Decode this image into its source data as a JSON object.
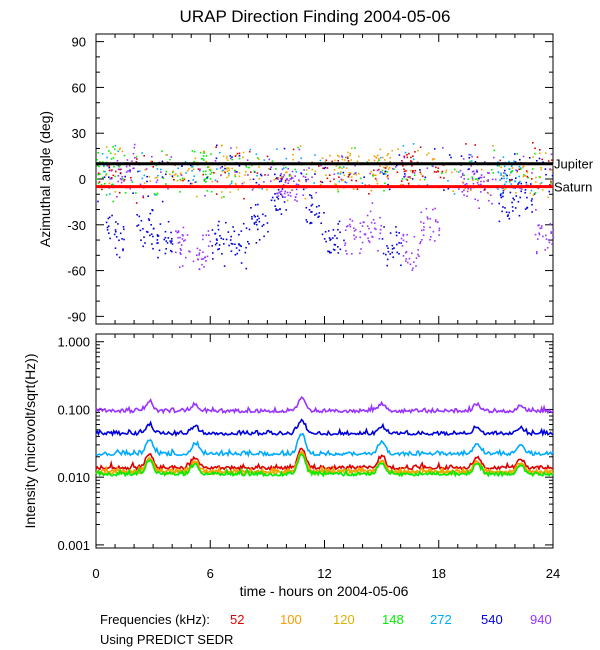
{
  "chart_data": {
    "type": "scatter",
    "title": "URAP Direction Finding  2004-05-06",
    "xlabel": "time - hours on 2004-05-06",
    "xlim": [
      0,
      24
    ],
    "xticks": [
      "0",
      "6",
      "12",
      "18",
      "24"
    ],
    "xtick_values": [
      0,
      6,
      12,
      18,
      24
    ],
    "panels": [
      {
        "id": "azimuth",
        "ylabel": "Azimuthal angle (deg)",
        "yscale": "linear",
        "ylim": [
          -95,
          95
        ],
        "yticks": [
          "90",
          "60",
          "30",
          "0",
          "-30",
          "-60",
          "-90"
        ],
        "ytick_values": [
          90,
          60,
          30,
          0,
          -30,
          -60,
          -90
        ],
        "reference_lines": [
          {
            "label": "Jupiter",
            "value": 10,
            "color": "#000000"
          },
          {
            "label": "Saturn",
            "value": -5,
            "color": "#ff0000"
          }
        ]
      },
      {
        "id": "intensity",
        "ylabel": "Intensity (microvolt/sqrt(Hz))",
        "yscale": "log",
        "ylim": [
          0.0009,
          1.3
        ],
        "yticks": [
          "1.000",
          "0.100",
          "0.010",
          "0.001"
        ],
        "ytick_values": [
          1.0,
          0.1,
          0.01,
          0.001
        ]
      }
    ],
    "series": [
      {
        "name": "52",
        "freq_khz": 52,
        "color": "#dd0000",
        "base_intensity": 0.013
      },
      {
        "name": "100",
        "freq_khz": 100,
        "color": "#ff9900",
        "base_intensity": 0.0115
      },
      {
        "name": "120",
        "freq_khz": 120,
        "color": "#e0b000",
        "base_intensity": 0.011
      },
      {
        "name": "148",
        "freq_khz": 148,
        "color": "#00ee00",
        "base_intensity": 0.0105
      },
      {
        "name": "272",
        "freq_khz": 272,
        "color": "#00aaff",
        "base_intensity": 0.021
      },
      {
        "name": "540",
        "freq_khz": 540,
        "color": "#0000dd",
        "base_intensity": 0.042
      },
      {
        "name": "940",
        "freq_khz": 940,
        "color": "#9933ff",
        "base_intensity": 0.09
      }
    ],
    "azimuth_samples": [
      {
        "x": 0.5,
        "y": 8,
        "s": 3
      },
      {
        "x": 1.0,
        "y": -35,
        "s": 5
      },
      {
        "x": 1.5,
        "y": 5,
        "s": 6
      },
      {
        "x": 2.5,
        "y": -30,
        "s": 5
      },
      {
        "x": 3.5,
        "y": -40,
        "s": 5
      },
      {
        "x": 4.5,
        "y": -45,
        "s": 6
      },
      {
        "x": 5.5,
        "y": -48,
        "s": 6
      },
      {
        "x": 6.5,
        "y": -42,
        "s": 5
      },
      {
        "x": 7.5,
        "y": -40,
        "s": 5
      },
      {
        "x": 8.5,
        "y": -25,
        "s": 5
      },
      {
        "x": 9.5,
        "y": -10,
        "s": 5
      },
      {
        "x": 10.0,
        "y": -5,
        "s": 6
      },
      {
        "x": 10.5,
        "y": 0,
        "s": 6
      },
      {
        "x": 11.5,
        "y": -20,
        "s": 5
      },
      {
        "x": 12.5,
        "y": -40,
        "s": 5
      },
      {
        "x": 13.5,
        "y": -35,
        "s": 6
      },
      {
        "x": 14.5,
        "y": -30,
        "s": 6
      },
      {
        "x": 15.5,
        "y": -42,
        "s": 5
      },
      {
        "x": 16.5,
        "y": -45,
        "s": 6
      },
      {
        "x": 17.5,
        "y": -30,
        "s": 6
      },
      {
        "x": 19.5,
        "y": 0,
        "s": 6
      },
      {
        "x": 20.5,
        "y": -5,
        "s": 6
      },
      {
        "x": 21.5,
        "y": -15,
        "s": 5
      },
      {
        "x": 22.5,
        "y": -10,
        "s": 5
      },
      {
        "x": 23.5,
        "y": -35,
        "s": 6
      },
      {
        "x": 5.5,
        "y": 8,
        "s": 3
      },
      {
        "x": 7.0,
        "y": 6,
        "s": 2
      },
      {
        "x": 13.0,
        "y": 7,
        "s": 2
      },
      {
        "x": 15.0,
        "y": 8,
        "s": 1
      },
      {
        "x": 16.5,
        "y": 8,
        "s": 0
      },
      {
        "x": 21.5,
        "y": 4,
        "s": 4
      }
    ]
  },
  "footer": {
    "freq_label": "Frequencies (kHz):",
    "source_note": "Using PREDICT SEDR"
  }
}
